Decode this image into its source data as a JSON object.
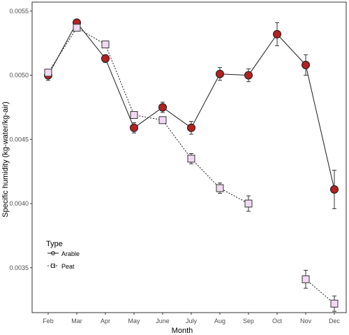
{
  "chart_data": {
    "type": "line",
    "xlabel": "Month",
    "ylabel": "Specific humidity (kg-water/kg-air)",
    "categories": [
      "Feb",
      "Mar",
      "Apr",
      "May",
      "June",
      "July",
      "Aug",
      "Sep",
      "Oct",
      "Nov",
      "Dec"
    ],
    "ylim": [
      0.00315,
      0.00557
    ],
    "yticks": [
      0.0035,
      0.004,
      0.0045,
      0.005,
      0.0055
    ],
    "ytick_labels": [
      "0.0035",
      "0.0040",
      "0.0045",
      "0.0050",
      "0.0055"
    ],
    "grid": false,
    "legend": {
      "title": "Type",
      "placement": "bottom-left"
    },
    "series": [
      {
        "name": "Arable",
        "line_style": "solid",
        "marker": "circle",
        "color": "#1a1a1a",
        "marker_fill": "#b22222",
        "values": [
          0.005,
          0.00541,
          0.00513,
          0.00459,
          0.00475,
          0.00459,
          0.00501,
          0.005,
          0.00532,
          0.00508,
          0.00411
        ],
        "error": [
          4e-05,
          2e-05,
          3e-05,
          4e-05,
          4e-05,
          5e-05,
          5e-05,
          5e-05,
          9e-05,
          8e-05,
          0.00015
        ]
      },
      {
        "name": "Peat",
        "line_style": "dotted",
        "marker": "square",
        "color": "#1a1a1a",
        "marker_fill": "#f2d9f2",
        "values": [
          0.00502,
          0.00537,
          0.00524,
          0.00469,
          0.00465,
          0.00435,
          0.00412,
          0.004,
          null,
          0.00341,
          0.00322
        ],
        "error": [
          2e-05,
          2e-05,
          2e-05,
          2e-05,
          2e-05,
          4e-05,
          4e-05,
          6e-05,
          null,
          7e-05,
          6e-05
        ]
      }
    ]
  }
}
